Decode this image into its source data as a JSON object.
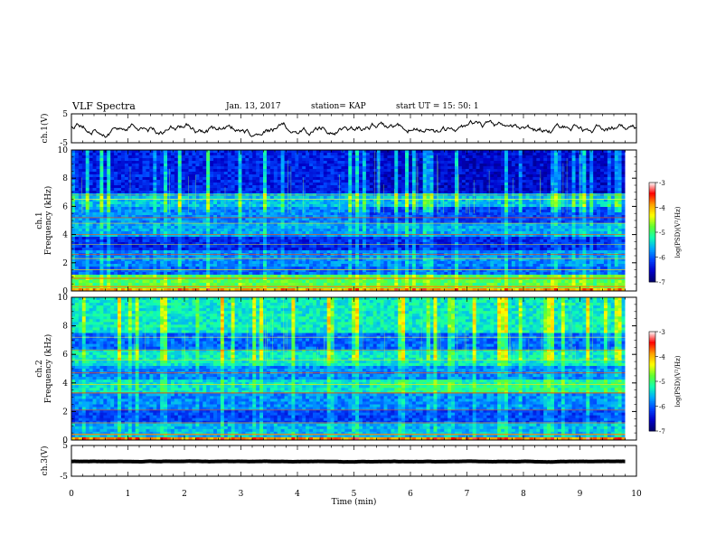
{
  "header": {
    "title": "VLF Spectra",
    "date": "Jan. 13, 2017",
    "station": "station= KAP",
    "start": "start  UT =   15: 50: 1"
  },
  "chart_data": [
    {
      "type": "line",
      "name": "ch1-waveform",
      "ylabel": "ch.1(V)",
      "ylim": [
        -5,
        5
      ],
      "yticks": [
        "5",
        "-5"
      ],
      "xlim": [
        0,
        10
      ],
      "values_range": [
        -2.2,
        2.0
      ]
    },
    {
      "type": "heatmap",
      "name": "ch1-spectrogram",
      "ylabel": "ch.1\nFrequency (kHz)",
      "ylim": [
        0,
        10
      ],
      "yticks": [
        "0",
        "2",
        "4",
        "6",
        "8",
        "10"
      ],
      "xlim": [
        0,
        9.8
      ],
      "colorbar": {
        "label": "log(PSD)(V²/Hz)",
        "range": [
          -7,
          -3
        ],
        "ticks": [
          "-3",
          "-4",
          "-5",
          "-6",
          "-7"
        ]
      }
    },
    {
      "type": "heatmap",
      "name": "ch2-spectrogram",
      "ylabel": "ch.2\nFrequency (kHz)",
      "ylim": [
        0,
        10
      ],
      "yticks": [
        "0",
        "2",
        "4",
        "6",
        "8",
        "10"
      ],
      "xlim": [
        0,
        9.8
      ],
      "colorbar": {
        "label": "log(PSD)(V²/Hz)",
        "range": [
          -7,
          -3
        ],
        "ticks": [
          "-3",
          "-4",
          "-5",
          "-6",
          "-7"
        ]
      }
    },
    {
      "type": "line",
      "name": "ch3-waveform",
      "ylabel": "ch.3(V)",
      "ylim": [
        -5,
        5
      ],
      "yticks": [
        "5",
        "-5"
      ],
      "xlim": [
        0,
        9.8
      ],
      "values_range": [
        -0.35,
        -0.05
      ]
    }
  ],
  "xaxis": {
    "label": "Time (min)",
    "ticks": [
      "0",
      "1",
      "2",
      "3",
      "4",
      "5",
      "6",
      "7",
      "8",
      "9",
      "10"
    ],
    "range": [
      0,
      10
    ]
  },
  "colors": {
    "line": "#000000",
    "colormap": [
      "#00006a",
      "#0000c8",
      "#0044ff",
      "#00a8ff",
      "#10ffb0",
      "#60ff30",
      "#ffff00",
      "#ffa000",
      "#ff0000",
      "#ffffff"
    ]
  }
}
